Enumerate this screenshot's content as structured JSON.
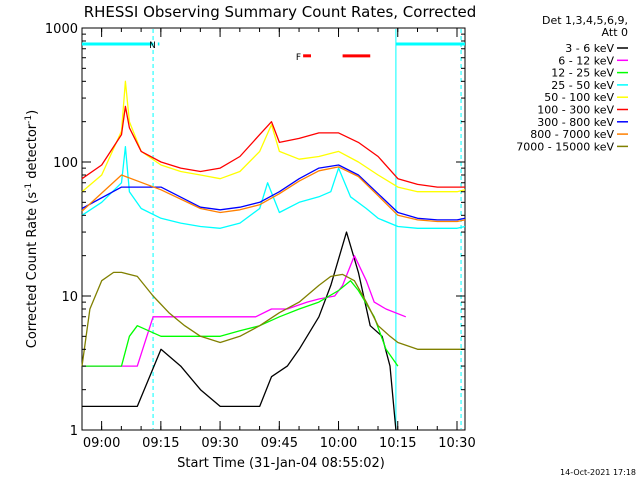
{
  "chart_data": {
    "type": "line",
    "title": "RHESSI Observing Summary Count Rates, Corrected",
    "ylabel_parts": [
      "Corrected Count Rate (s",
      "-1",
      " detector",
      "-1",
      ")"
    ],
    "xlabel": "Start Time (31-Jan-04 08:55:02)",
    "y_scale": "log",
    "ylim": [
      1,
      1000
    ],
    "xlim_minutes": [
      0,
      97
    ],
    "y_ticks": [
      {
        "value": 1,
        "label": "1"
      },
      {
        "value": 10,
        "label": "10"
      },
      {
        "value": 100,
        "label": "100"
      },
      {
        "value": 1000,
        "label": "1000"
      }
    ],
    "x_ticks": [
      {
        "minute": 4.97,
        "label": "09:00"
      },
      {
        "minute": 19.97,
        "label": "09:15"
      },
      {
        "minute": 34.97,
        "label": "09:30"
      },
      {
        "minute": 49.97,
        "label": "09:45"
      },
      {
        "minute": 64.97,
        "label": "10:00"
      },
      {
        "minute": 79.97,
        "label": "10:15"
      },
      {
        "minute": 94.97,
        "label": "10:30"
      }
    ],
    "legend": {
      "header": [
        "Det 1,3,4,5,6,9,",
        "Att 0"
      ],
      "placement": "right"
    },
    "series": [
      {
        "name": "3 - 6 keV",
        "color": "#000000",
        "x": [
          0,
          14,
          20,
          25,
          30,
          35,
          40,
          45,
          48,
          52,
          55,
          60,
          63,
          67,
          70,
          73,
          76,
          78,
          79.5
        ],
        "y": [
          1.5,
          1.5,
          4,
          3,
          2,
          1.5,
          1.5,
          1.5,
          2.5,
          3,
          4,
          7,
          12,
          30,
          15,
          6,
          5,
          3,
          1
        ]
      },
      {
        "name": "6 - 12 keV",
        "color": "#ff00ff",
        "x": [
          0,
          14,
          18,
          20,
          24,
          28,
          34,
          40,
          44,
          48,
          52,
          57,
          60,
          64,
          66,
          69,
          72,
          74,
          77,
          82
        ],
        "y": [
          3,
          3,
          7,
          7,
          7,
          7,
          7,
          7,
          7,
          8,
          8,
          9,
          9.5,
          10,
          12,
          20,
          13,
          9,
          8,
          7
        ]
      },
      {
        "name": "12 - 25 keV",
        "color": "#00ff00",
        "x": [
          0,
          10,
          12,
          14,
          20,
          25,
          30,
          35,
          40,
          45,
          50,
          55,
          60,
          65,
          68,
          70,
          74,
          77,
          80
        ],
        "y": [
          3,
          3,
          5,
          6,
          5,
          5,
          5,
          5,
          5.5,
          6,
          7,
          8,
          9,
          11,
          13,
          11,
          7,
          4,
          3
        ]
      },
      {
        "name": "25 - 50 keV",
        "color": "#00ffff",
        "x": [
          0,
          5,
          10,
          11,
          12,
          15,
          20,
          25,
          30,
          35,
          40,
          45,
          47,
          50,
          55,
          60,
          63,
          65,
          68,
          72,
          75,
          80,
          85,
          90,
          95,
          97
        ],
        "y": [
          40,
          50,
          70,
          130,
          60,
          45,
          38,
          35,
          33,
          32,
          35,
          45,
          70,
          42,
          50,
          55,
          60,
          90,
          55,
          45,
          38,
          33,
          32,
          32,
          32,
          33
        ]
      },
      {
        "name": "50 - 100 keV",
        "color": "#ffff00",
        "x": [
          0,
          5,
          10,
          11,
          12,
          15,
          20,
          25,
          30,
          35,
          40,
          45,
          48,
          50,
          55,
          60,
          65,
          70,
          75,
          80,
          85,
          90,
          95,
          97
        ],
        "y": [
          60,
          80,
          170,
          400,
          200,
          120,
          95,
          85,
          80,
          75,
          85,
          120,
          190,
          120,
          105,
          110,
          120,
          100,
          80,
          65,
          60,
          60,
          60,
          62
        ]
      },
      {
        "name": "100 - 300 keV",
        "color": "#ff0000",
        "x": [
          0,
          5,
          10,
          11,
          12,
          15,
          20,
          25,
          30,
          35,
          40,
          45,
          48,
          50,
          55,
          60,
          65,
          70,
          75,
          80,
          85,
          90,
          95,
          97
        ],
        "y": [
          75,
          95,
          160,
          260,
          180,
          120,
          100,
          90,
          85,
          90,
          110,
          160,
          200,
          140,
          150,
          165,
          165,
          140,
          110,
          75,
          68,
          65,
          65,
          65
        ]
      },
      {
        "name": "300 - 800 keV",
        "color": "#0000ff",
        "x": [
          0,
          10,
          20,
          30,
          35,
          40,
          45,
          50,
          55,
          60,
          65,
          70,
          75,
          80,
          85,
          90,
          95,
          97
        ],
        "y": [
          45,
          65,
          65,
          46,
          44,
          46,
          50,
          60,
          75,
          90,
          95,
          80,
          58,
          42,
          38,
          37,
          37,
          38
        ]
      },
      {
        "name": "800 - 7000 keV",
        "color": "#ff8000",
        "x": [
          0,
          10,
          20,
          30,
          35,
          40,
          45,
          50,
          55,
          60,
          65,
          70,
          75,
          80,
          85,
          90,
          95,
          97
        ],
        "y": [
          43,
          80,
          62,
          45,
          42,
          44,
          48,
          58,
          72,
          86,
          92,
          78,
          56,
          40,
          37,
          36,
          36,
          37
        ]
      },
      {
        "name": "7000 - 15000 keV",
        "color": "#808000",
        "x": [
          0,
          2,
          5,
          8,
          10,
          14,
          18,
          22,
          26,
          30,
          35,
          40,
          45,
          50,
          55,
          60,
          63,
          66,
          69,
          72,
          75,
          78,
          80,
          85,
          90,
          95,
          97
        ],
        "y": [
          3,
          8,
          13,
          15,
          15,
          14,
          10,
          7.5,
          6,
          5,
          4.5,
          5,
          6,
          7.5,
          9,
          12,
          14,
          14.5,
          13,
          9,
          6,
          5,
          4.5,
          4,
          4,
          4,
          4
        ]
      }
    ],
    "annotations": [
      {
        "type": "flag_bar",
        "label": "",
        "color": "#00ffff",
        "x_start": 0,
        "x_end": 18,
        "y": 760
      },
      {
        "type": "flag_bar",
        "label": "N",
        "color": "#00ffff",
        "x_start": 19.2,
        "x_end": 19.6,
        "y": 760
      },
      {
        "type": "flag_bar",
        "label": "",
        "color": "#00ffff",
        "x_start": 79.5,
        "x_end": 97,
        "y": 760
      },
      {
        "type": "flag_bar",
        "label": "F",
        "color": "#ff0000",
        "x_start": 56,
        "x_end": 58,
        "y": 620
      },
      {
        "type": "flag_bar",
        "label": "",
        "color": "#ff0000",
        "x_start": 66,
        "x_end": 73,
        "y": 620
      }
    ],
    "markers": [
      {
        "style": "dashed",
        "color": "#00ffff",
        "x": 18
      },
      {
        "style": "solid",
        "color": "#00ffff",
        "x": 79.5
      },
      {
        "style": "dashed",
        "color": "#00ffff",
        "x": 96
      }
    ],
    "timestamp": "14-Oct-2021 17:18"
  }
}
